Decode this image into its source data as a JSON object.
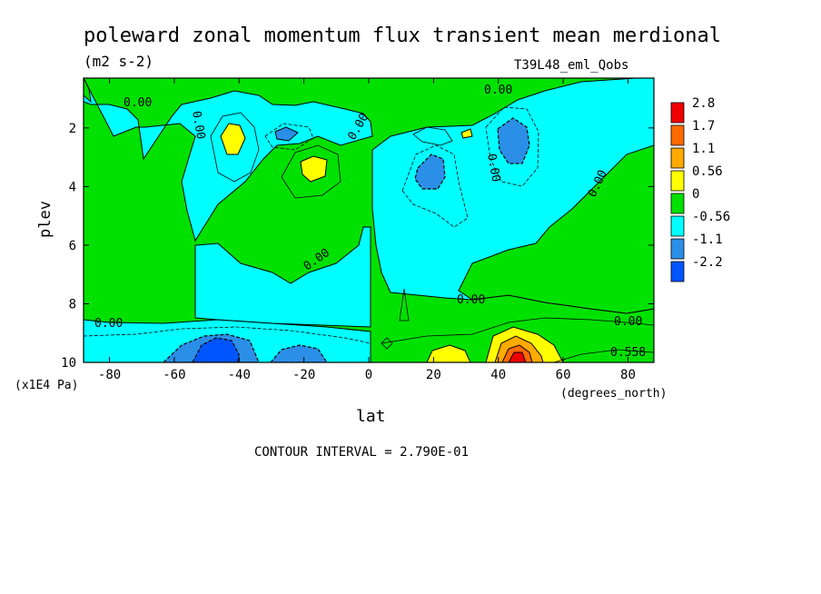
{
  "chart_data": {
    "type": "heatmap",
    "title": "poleward zonal momentum flux transient mean merdional",
    "units": "(m2 s-2)",
    "dataset": "T39L48_eml_Qobs",
    "xlabel": "lat",
    "xunits": "(degrees_north)",
    "ylabel": "plev",
    "yunits": "(x1E4 Pa)",
    "xlim": [
      -88,
      88
    ],
    "ylim": [
      10,
      0.3
    ],
    "x_ticks": [
      -80,
      -60,
      -40,
      -20,
      0,
      20,
      40,
      60,
      80
    ],
    "x_tick_labels": [
      "-80",
      "-60",
      "-40",
      "-20",
      "0",
      "20",
      "40",
      "60",
      "80"
    ],
    "y_ticks": [
      2,
      4,
      6,
      8,
      10
    ],
    "y_tick_labels": [
      "2",
      "4",
      "6",
      "8",
      "10"
    ],
    "contour_interval_text": "CONTOUR INTERVAL = 2.790E-01",
    "levels": [
      -2.2,
      -1.1,
      -0.56,
      0,
      0.56,
      1.1,
      1.7,
      2.8
    ],
    "level_labels": [
      "-2.2",
      "-1.1",
      "-0.56",
      "0",
      "0.56",
      "1.1",
      "1.7",
      "2.8"
    ],
    "level_colors": [
      "#0055ff",
      "#2b8fe8",
      "#00ffff",
      "#00e100",
      "#ffff00",
      "#ffaa00",
      "#ff6a00",
      "#f00000"
    ],
    "contour_labels": [
      "0.00",
      "0.00",
      "0.00",
      "0.00",
      "0.00",
      "0.00",
      "0.00",
      "0.00",
      "0.00",
      "0.00",
      "0.558"
    ],
    "features": [
      {
        "lat": -45,
        "plev": 2.3,
        "value": 0.7
      },
      {
        "lat": -18,
        "plev": 3.2,
        "value": 0.7
      },
      {
        "lat": -30,
        "plev": 2.1,
        "value": -0.7
      },
      {
        "lat": 20,
        "plev": 3.4,
        "value": -0.8
      },
      {
        "lat": 45,
        "plev": 2.3,
        "value": -0.9
      },
      {
        "lat": 32,
        "plev": 2.1,
        "value": 0.6
      },
      {
        "lat": -45,
        "plev": 9.6,
        "value": -2.4
      },
      {
        "lat": -25,
        "plev": 9.8,
        "value": -1.2
      },
      {
        "lat": 20,
        "plev": 9.8,
        "value": 0.7
      },
      {
        "lat": 45,
        "plev": 9.6,
        "value": 2.9
      }
    ]
  }
}
